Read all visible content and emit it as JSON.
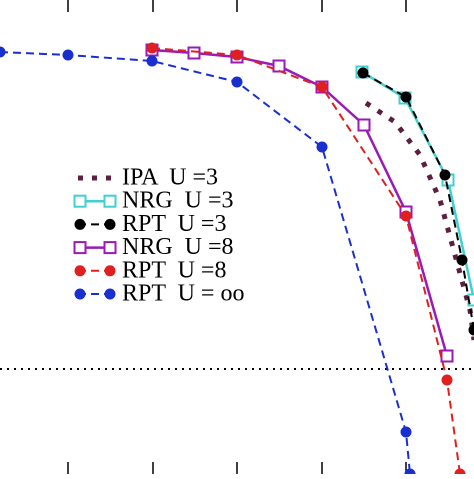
{
  "chart_data": {
    "type": "line",
    "xlim": [
      0,
      474
    ],
    "ylim": [
      0,
      474
    ],
    "xticks": [
      68,
      153,
      237,
      322,
      406
    ],
    "hline": 105,
    "series": [
      {
        "name": "IPA  U =3",
        "color": "#5c1f3f",
        "style": "dotted",
        "marker": "none",
        "x": [
          366,
          395,
          420,
          440,
          455,
          470,
          474
        ],
        "values": [
          371,
          352,
          319,
          274,
          219,
          164,
          134
        ]
      },
      {
        "name": "NRG  U =3",
        "color": "#40d0d0",
        "style": "solid",
        "marker": "square",
        "x": [
          362,
          405,
          448,
          474
        ],
        "values": [
          402,
          376,
          294,
          174
        ]
      },
      {
        "name": "RPT  U =3",
        "color": "#000000",
        "style": "dashed",
        "marker": "circle",
        "x": [
          363,
          406,
          445,
          462,
          474
        ],
        "values": [
          401,
          377,
          299,
          214,
          144
        ]
      },
      {
        "name": "NRG  U =8",
        "color": "#9a1ab8",
        "style": "solid",
        "marker": "square",
        "x": [
          152,
          194,
          237,
          279,
          322,
          364,
          406,
          447
        ],
        "values": [
          424,
          421,
          417,
          408,
          387,
          349,
          262,
          118
        ]
      },
      {
        "name": "RPT  U =8",
        "color": "#e02020",
        "style": "dashed",
        "marker": "circle",
        "x": [
          152,
          237,
          322,
          406,
          447,
          460
        ],
        "values": [
          426,
          419,
          387,
          258,
          94,
          0
        ]
      },
      {
        "name": "RPT  U = oo",
        "color": "#1a2fd0",
        "style": "dashed",
        "marker": "circle",
        "x": [
          0,
          68,
          152,
          237,
          322,
          406,
          410
        ],
        "values": [
          422,
          419,
          413,
          392,
          327,
          42,
          0
        ]
      }
    ]
  }
}
